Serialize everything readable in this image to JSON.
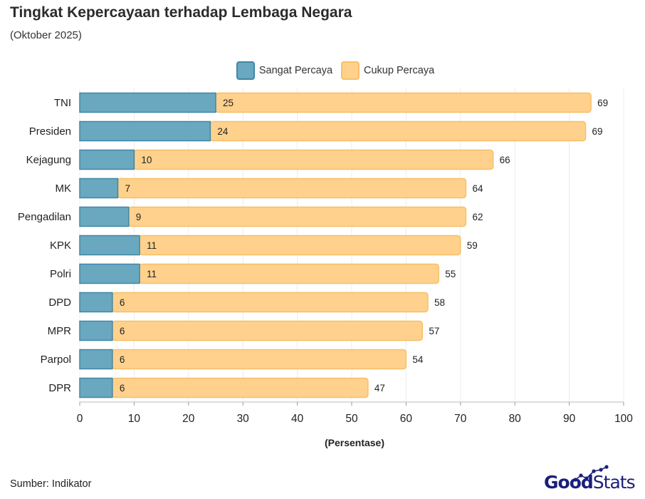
{
  "title": "Tingkat Kepercayaan terhadap Lembaga Negara",
  "subtitle": "(Oktober 2025)",
  "source": "Sumber: Indikator",
  "logo": {
    "good": "Good",
    "stats": "Stats"
  },
  "colors": {
    "sangat_fill": "#6aa8c0",
    "sangat_stroke": "#3f87a6",
    "cukup_fill": "#ffd18d",
    "cukup_stroke": "#f6c066",
    "grid": "#ececec"
  },
  "chart_data": {
    "type": "bar",
    "orientation": "horizontal",
    "stacked": true,
    "xlabel": "(Persentase)",
    "xlim": [
      0,
      100
    ],
    "xticks": [
      0,
      10,
      20,
      30,
      40,
      50,
      60,
      70,
      80,
      90,
      100
    ],
    "grid": true,
    "legend_position": "top",
    "categories": [
      "TNI",
      "Presiden",
      "Kejagung",
      "MK",
      "Pengadilan",
      "KPK",
      "Polri",
      "DPD",
      "MPR",
      "Parpol",
      "DPR"
    ],
    "series": [
      {
        "name": "Sangat Percaya",
        "values": [
          25,
          24,
          10,
          7,
          9,
          11,
          11,
          6,
          6,
          6,
          6
        ]
      },
      {
        "name": "Cukup Percaya",
        "values": [
          69,
          69,
          66,
          64,
          62,
          59,
          55,
          58,
          57,
          54,
          47
        ]
      }
    ]
  }
}
